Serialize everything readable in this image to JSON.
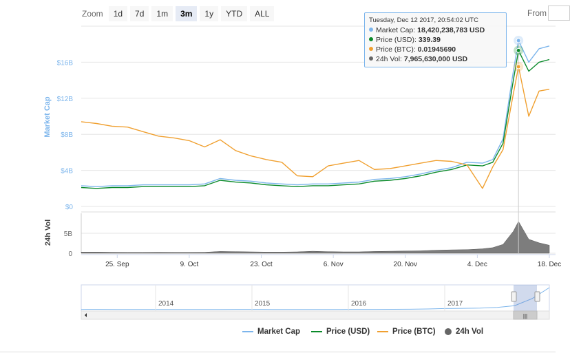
{
  "zoom": {
    "label": "Zoom",
    "buttons": [
      "1d",
      "7d",
      "1m",
      "3m",
      "1y",
      "YTD",
      "ALL"
    ],
    "active": "3m"
  },
  "range_selector": {
    "from_label": "From"
  },
  "tooltip": {
    "date": "Tuesday, Dec 12 2017, 20:54:02 UTC",
    "rows": [
      {
        "label": "Market Cap:",
        "value": "18,420,238,783 USD",
        "color": "#7cb5ec"
      },
      {
        "label": "Price (USD):",
        "value": "339.39",
        "color": "#0a8a2a"
      },
      {
        "label": "Price (BTC):",
        "value": "0.01945690",
        "color": "#f0a030"
      },
      {
        "label": "24h Vol:",
        "value": "7,965,630,000 USD",
        "color": "#666666"
      }
    ]
  },
  "legend": [
    {
      "name": "Market Cap",
      "color": "#7cb5ec",
      "symbol": "line"
    },
    {
      "name": "Price (USD)",
      "color": "#0a8a2a",
      "symbol": "line"
    },
    {
      "name": "Price (BTC)",
      "color": "#f0a030",
      "symbol": "line"
    },
    {
      "name": "24h Vol",
      "color": "#666666",
      "symbol": "dot"
    }
  ],
  "chart_data": {
    "type": "line",
    "x": [
      "2017-09-18",
      "2017-09-21",
      "2017-09-24",
      "2017-09-27",
      "2017-09-30",
      "2017-10-03",
      "2017-10-06",
      "2017-10-09",
      "2017-10-12",
      "2017-10-15",
      "2017-10-18",
      "2017-10-21",
      "2017-10-24",
      "2017-10-27",
      "2017-10-30",
      "2017-11-02",
      "2017-11-05",
      "2017-11-08",
      "2017-11-11",
      "2017-11-14",
      "2017-11-17",
      "2017-11-20",
      "2017-11-23",
      "2017-11-26",
      "2017-11-29",
      "2017-12-02",
      "2017-12-05",
      "2017-12-07",
      "2017-12-09",
      "2017-12-11",
      "2017-12-12",
      "2017-12-14",
      "2017-12-16",
      "2017-12-18"
    ],
    "series": [
      {
        "name": "Market Cap",
        "axis": "left",
        "color": "#7cb5ec",
        "values": [
          2.3,
          2.2,
          2.3,
          2.3,
          2.4,
          2.4,
          2.4,
          2.4,
          2.5,
          3.1,
          2.9,
          2.8,
          2.6,
          2.5,
          2.4,
          2.5,
          2.5,
          2.6,
          2.7,
          3.0,
          3.1,
          3.3,
          3.6,
          4.0,
          4.3,
          4.9,
          4.8,
          5.2,
          7.5,
          15.0,
          18.4,
          16.0,
          17.5,
          17.8
        ]
      },
      {
        "name": "Price (USD)",
        "axis": "left",
        "color": "#0a8a2a",
        "values": [
          2.1,
          2.0,
          2.1,
          2.1,
          2.2,
          2.2,
          2.2,
          2.2,
          2.3,
          2.9,
          2.7,
          2.6,
          2.4,
          2.3,
          2.2,
          2.3,
          2.3,
          2.4,
          2.5,
          2.8,
          2.9,
          3.1,
          3.4,
          3.8,
          4.1,
          4.6,
          4.5,
          4.9,
          7.0,
          14.0,
          17.3,
          15.0,
          16.0,
          16.3
        ]
      },
      {
        "name": "Price (BTC)",
        "axis": "left",
        "color": "#f0a030",
        "values": [
          9.4,
          9.2,
          8.9,
          8.8,
          8.3,
          7.8,
          7.6,
          7.3,
          6.6,
          7.4,
          6.2,
          5.6,
          5.2,
          4.9,
          3.4,
          3.3,
          4.5,
          4.8,
          5.1,
          4.1,
          4.2,
          4.5,
          4.8,
          5.1,
          5.0,
          4.6,
          2.0,
          4.4,
          6.3,
          12.5,
          15.5,
          10.0,
          12.8,
          13.0
        ]
      },
      {
        "name": "24h Vol",
        "axis": "volume",
        "color": "#666666",
        "values": [
          0.3,
          0.3,
          0.25,
          0.2,
          0.2,
          0.25,
          0.2,
          0.2,
          0.25,
          0.45,
          0.4,
          0.35,
          0.3,
          0.3,
          0.35,
          0.5,
          0.4,
          0.35,
          0.35,
          0.45,
          0.5,
          0.55,
          0.6,
          0.75,
          0.85,
          0.9,
          1.1,
          1.4,
          2.2,
          5.5,
          7.97,
          3.5,
          2.6,
          2.0
        ]
      }
    ],
    "y_ticks": [
      "$0",
      "$4B",
      "$8B",
      "$12B",
      "$16B"
    ],
    "ylim": [
      0,
      20
    ],
    "ylabel": "Market Cap",
    "vol_ticks": [
      "0",
      "5B"
    ],
    "vol_ylim": [
      0,
      10
    ],
    "vol_label": "24h Vol",
    "x_ticks": [
      {
        "label": "25. Sep",
        "date": "2017-09-25"
      },
      {
        "label": "9. Oct",
        "date": "2017-10-09"
      },
      {
        "label": "23. Oct",
        "date": "2017-10-23"
      },
      {
        "label": "6. Nov",
        "date": "2017-11-06"
      },
      {
        "label": "20. Nov",
        "date": "2017-11-20"
      },
      {
        "label": "4. Dec",
        "date": "2017-12-04"
      },
      {
        "label": "18. Dec",
        "date": "2017-12-18"
      }
    ],
    "navigator": {
      "years": [
        "2014",
        "2015",
        "2016",
        "2017"
      ],
      "values": [
        0.05,
        0.06,
        0.05,
        0.05,
        0.04,
        0.04,
        0.05,
        0.05,
        0.05,
        0.06,
        0.06,
        0.05,
        0.05,
        0.05,
        0.05,
        0.05,
        0.06,
        0.06,
        0.08,
        0.1,
        0.15,
        0.25,
        0.3,
        0.35,
        0.5,
        0.9,
        2.5,
        5.0
      ]
    },
    "grid": true
  }
}
